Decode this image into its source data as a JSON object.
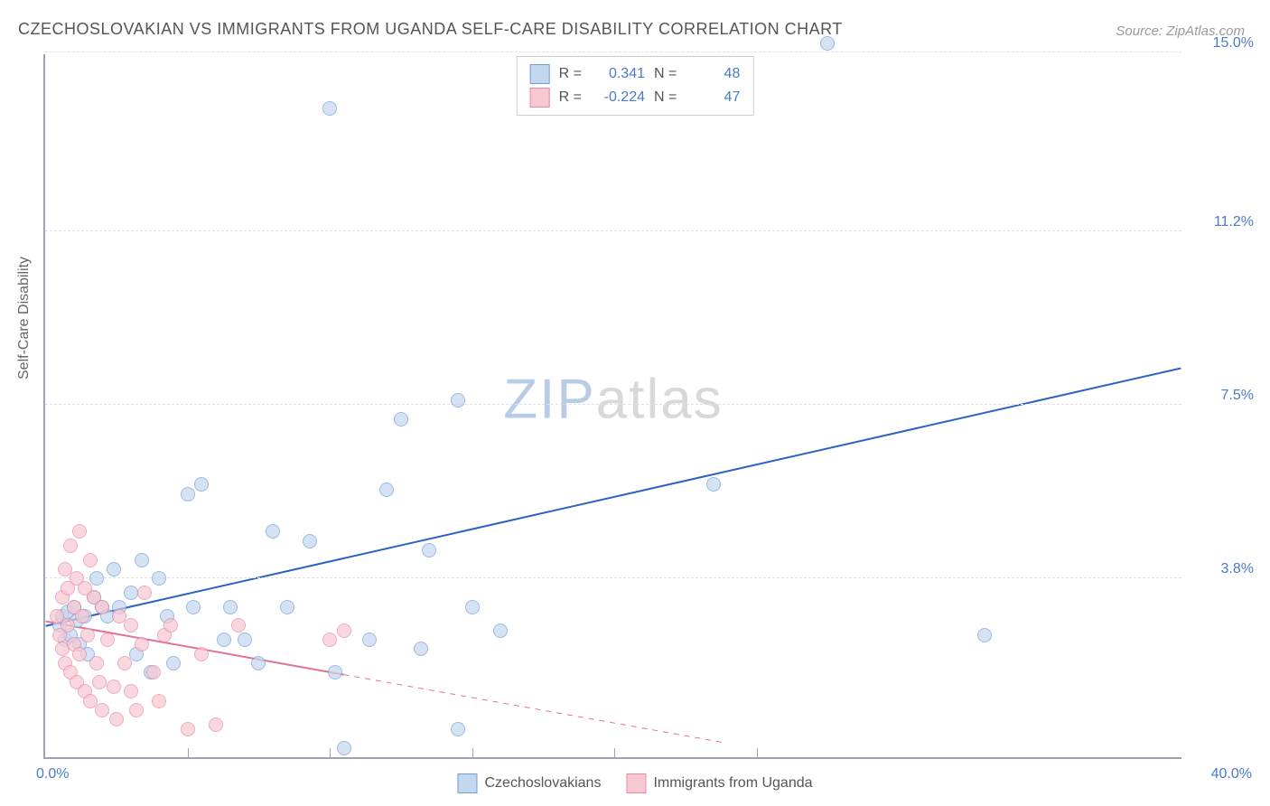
{
  "title": "CZECHOSLOVAKIAN VS IMMIGRANTS FROM UGANDA SELF-CARE DISABILITY CORRELATION CHART",
  "source_label": "Source:",
  "source_name": "ZipAtlas.com",
  "yaxis_label": "Self-Care Disability",
  "watermark_a": "ZIP",
  "watermark_b": "atlas",
  "chart": {
    "type": "scatter",
    "background_color": "#ffffff",
    "grid_color": "#e0e0e0",
    "axis_color": "#9ca3af",
    "tick_label_color": "#4a7bc8",
    "xlim": [
      0,
      40
    ],
    "ylim": [
      0,
      15
    ],
    "xticks_pct": [
      0,
      40
    ],
    "xtick_labels": [
      "0.0%",
      "40.0%"
    ],
    "yticks": [
      3.8,
      7.5,
      11.2,
      15.0
    ],
    "ytick_labels": [
      "3.8%",
      "7.5%",
      "11.2%",
      "15.0%"
    ],
    "vgrid_x": [
      5,
      10,
      15,
      20,
      25
    ],
    "marker_radius": 8,
    "marker_border_width": 1.2,
    "series": [
      {
        "name": "Czechoslovakians",
        "fill": "#c3d7ee",
        "stroke": "#6f9fd8",
        "fill_opacity": 0.7,
        "r_value": "0.341",
        "n_value": "48",
        "trend": {
          "x1": 0,
          "y1": 2.8,
          "x2": 40,
          "y2": 8.3,
          "solid_until_x": 40,
          "color": "#2a63c0",
          "width": 2
        },
        "points": [
          [
            0.5,
            2.8
          ],
          [
            0.6,
            3.0
          ],
          [
            0.7,
            2.5
          ],
          [
            0.8,
            3.1
          ],
          [
            0.9,
            2.6
          ],
          [
            1.0,
            3.2
          ],
          [
            1.1,
            2.9
          ],
          [
            1.2,
            2.4
          ],
          [
            1.4,
            3.0
          ],
          [
            1.5,
            2.2
          ],
          [
            1.7,
            3.4
          ],
          [
            1.8,
            3.8
          ],
          [
            2.0,
            3.2
          ],
          [
            2.2,
            3.0
          ],
          [
            2.4,
            4.0
          ],
          [
            2.6,
            3.2
          ],
          [
            3.0,
            3.5
          ],
          [
            3.2,
            2.2
          ],
          [
            3.4,
            4.2
          ],
          [
            3.7,
            1.8
          ],
          [
            4.0,
            3.8
          ],
          [
            4.3,
            3.0
          ],
          [
            4.5,
            2.0
          ],
          [
            5.0,
            5.6
          ],
          [
            5.2,
            3.2
          ],
          [
            5.5,
            5.8
          ],
          [
            6.3,
            2.5
          ],
          [
            6.5,
            3.2
          ],
          [
            7.0,
            2.5
          ],
          [
            7.5,
            2.0
          ],
          [
            8.0,
            4.8
          ],
          [
            8.5,
            3.2
          ],
          [
            9.3,
            4.6
          ],
          [
            10.0,
            13.8
          ],
          [
            10.2,
            1.8
          ],
          [
            10.5,
            0.2
          ],
          [
            12.0,
            5.7
          ],
          [
            12.5,
            7.2
          ],
          [
            13.2,
            2.3
          ],
          [
            13.5,
            4.4
          ],
          [
            14.5,
            0.6
          ],
          [
            15.0,
            3.2
          ],
          [
            16.0,
            2.7
          ],
          [
            23.5,
            5.8
          ],
          [
            27.5,
            15.2
          ],
          [
            33.0,
            2.6
          ],
          [
            14.5,
            7.6
          ],
          [
            11.4,
            2.5
          ]
        ]
      },
      {
        "name": "Immigrants from Uganda",
        "fill": "#f7c7d2",
        "stroke": "#e88aa3",
        "fill_opacity": 0.7,
        "r_value": "-0.224",
        "n_value": "47",
        "trend": {
          "x1": 0,
          "y1": 2.9,
          "x2": 24,
          "y2": 0.3,
          "solid_until_x": 10.5,
          "color": "#e27296",
          "width": 2
        },
        "points": [
          [
            0.4,
            3.0
          ],
          [
            0.5,
            2.6
          ],
          [
            0.6,
            3.4
          ],
          [
            0.6,
            2.3
          ],
          [
            0.7,
            4.0
          ],
          [
            0.7,
            2.0
          ],
          [
            0.8,
            3.6
          ],
          [
            0.8,
            2.8
          ],
          [
            0.9,
            4.5
          ],
          [
            0.9,
            1.8
          ],
          [
            1.0,
            3.2
          ],
          [
            1.0,
            2.4
          ],
          [
            1.1,
            3.8
          ],
          [
            1.1,
            1.6
          ],
          [
            1.2,
            4.8
          ],
          [
            1.2,
            2.2
          ],
          [
            1.3,
            3.0
          ],
          [
            1.4,
            1.4
          ],
          [
            1.4,
            3.6
          ],
          [
            1.5,
            2.6
          ],
          [
            1.6,
            4.2
          ],
          [
            1.6,
            1.2
          ],
          [
            1.7,
            3.4
          ],
          [
            1.8,
            2.0
          ],
          [
            1.9,
            1.6
          ],
          [
            2.0,
            3.2
          ],
          [
            2.0,
            1.0
          ],
          [
            2.2,
            2.5
          ],
          [
            2.4,
            1.5
          ],
          [
            2.5,
            0.8
          ],
          [
            2.6,
            3.0
          ],
          [
            2.8,
            2.0
          ],
          [
            3.0,
            1.4
          ],
          [
            3.0,
            2.8
          ],
          [
            3.2,
            1.0
          ],
          [
            3.4,
            2.4
          ],
          [
            3.5,
            3.5
          ],
          [
            3.8,
            1.8
          ],
          [
            4.0,
            1.2
          ],
          [
            4.2,
            2.6
          ],
          [
            4.4,
            2.8
          ],
          [
            5.0,
            0.6
          ],
          [
            5.5,
            2.2
          ],
          [
            6.0,
            0.7
          ],
          [
            6.8,
            2.8
          ],
          [
            10.0,
            2.5
          ],
          [
            10.5,
            2.7
          ]
        ]
      }
    ]
  },
  "top_legend": {
    "r_prefix": "R =",
    "n_prefix": "N ="
  },
  "bottom_legend": {
    "label_a": "Czechoslovakians",
    "label_b": "Immigrants from Uganda"
  }
}
